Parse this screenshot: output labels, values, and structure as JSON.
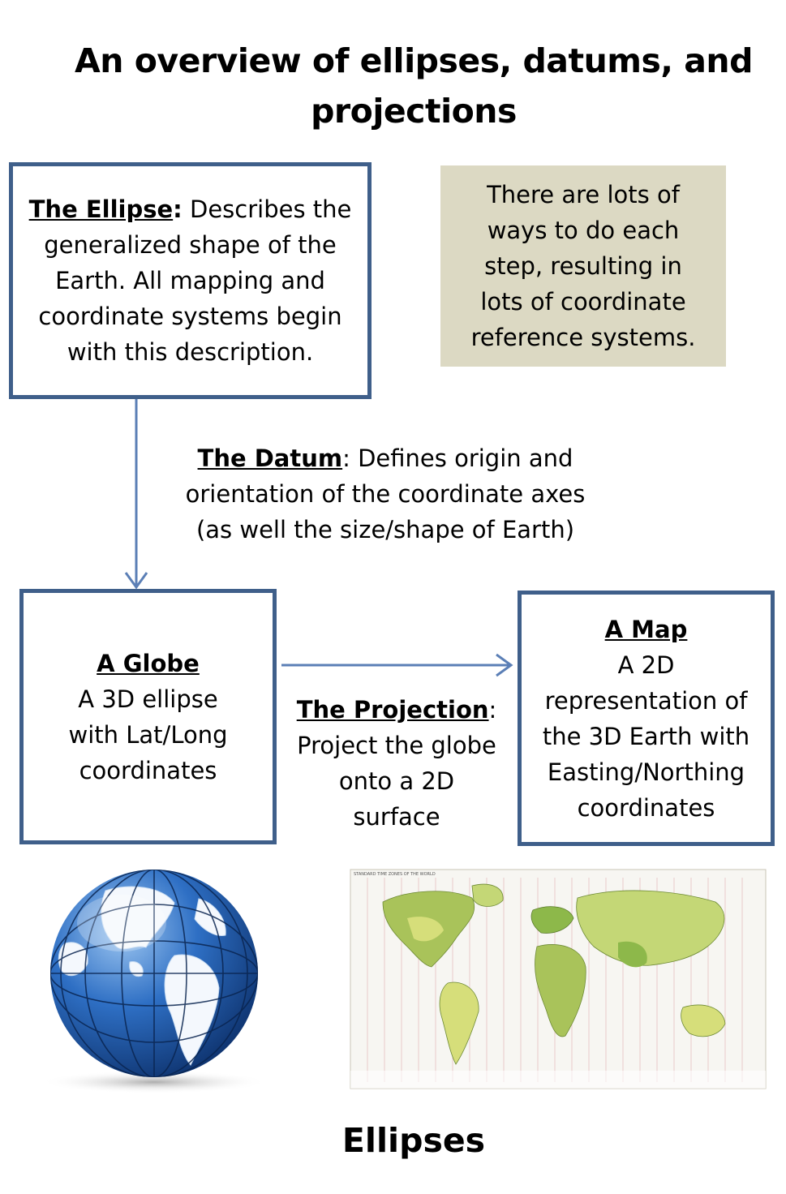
{
  "title": {
    "line1": "An overview of ellipses, datums, and",
    "line2": "projections"
  },
  "ellipse_box": {
    "heading": "The Ellipse",
    "heading_colon": ":",
    "lines": [
      " Describes the",
      "generalized shape of the",
      "Earth.  All mapping and",
      "coordinate systems begin",
      "with this description."
    ]
  },
  "note": {
    "lines": [
      "There are lots of",
      "ways to do each",
      "step, resulting in",
      "lots of coordinate",
      "reference systems."
    ]
  },
  "datum": {
    "heading": "The Datum",
    "line1_rest": ": Defines origin and",
    "line2": "orientation of the coordinate axes",
    "line3": "(as well the size/shape of Earth)"
  },
  "globe_box": {
    "heading": "A Globe",
    "lines": [
      "A 3D ellipse",
      "with Lat/Long",
      "coordinates"
    ]
  },
  "projection": {
    "heading": "The Projection",
    "heading_rest": ":",
    "lines": [
      "Project the globe",
      "onto a 2D",
      "surface"
    ]
  },
  "map_box": {
    "heading": "A Map",
    "lines": [
      "A 2D",
      "representation of",
      "the 3D Earth with",
      "Easting/Northing",
      "coordinates"
    ]
  },
  "map_image": {
    "title": "STANDARD TIME ZONES OF THE WORLD"
  },
  "footer": "Ellipses",
  "colors": {
    "box_border": "#3f5f8a",
    "arrow": "#5b7fb6",
    "note_bg": "#dcd9c3",
    "ocean_blue": "#1b4f9c",
    "map_green": "#8db84a"
  }
}
